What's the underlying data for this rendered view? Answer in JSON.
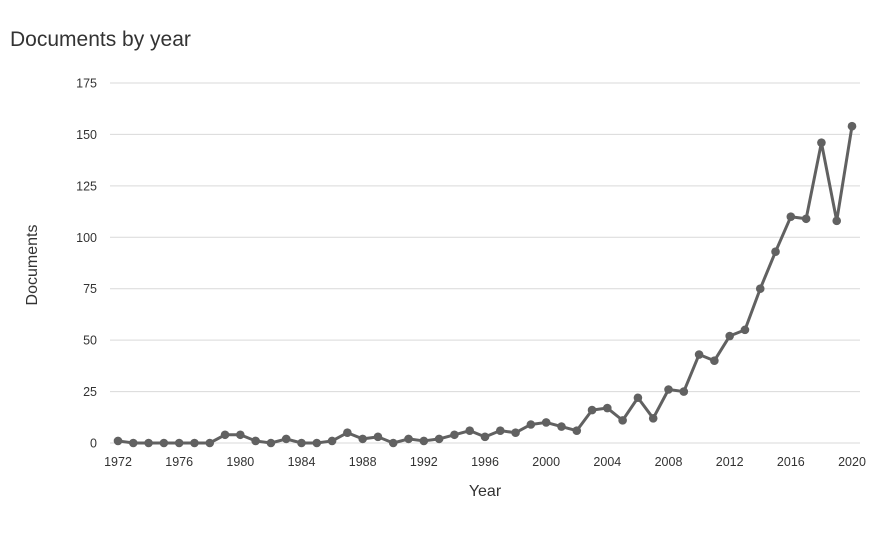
{
  "chart_data": {
    "type": "line",
    "title": "Documents by year",
    "xlabel": "Year",
    "ylabel": "Documents",
    "x": [
      1972,
      1973,
      1974,
      1975,
      1976,
      1977,
      1978,
      1979,
      1980,
      1981,
      1982,
      1983,
      1984,
      1985,
      1986,
      1987,
      1988,
      1989,
      1990,
      1991,
      1992,
      1993,
      1994,
      1995,
      1996,
      1997,
      1998,
      1999,
      2000,
      2001,
      2002,
      2003,
      2004,
      2005,
      2006,
      2007,
      2008,
      2009,
      2010,
      2011,
      2012,
      2013,
      2014,
      2015,
      2016,
      2017,
      2018,
      2019,
      2020
    ],
    "series": [
      {
        "values": [
          1,
          0,
          0,
          0,
          0,
          0,
          0,
          4,
          4,
          1,
          0,
          2,
          0,
          0,
          1,
          5,
          2,
          3,
          0,
          2,
          1,
          2,
          4,
          6,
          3,
          6,
          5,
          9,
          10,
          8,
          6,
          16,
          17,
          11,
          22,
          12,
          26,
          25,
          43,
          40,
          52,
          55,
          75,
          93,
          110,
          109,
          146,
          108,
          154
        ]
      }
    ],
    "xticks": [
      1972,
      1976,
      1980,
      1984,
      1988,
      1992,
      1996,
      2000,
      2004,
      2008,
      2012,
      2016,
      2020
    ],
    "yticks": [
      0,
      25,
      50,
      75,
      100,
      125,
      150,
      175
    ],
    "ylim": [
      0,
      175
    ],
    "grid": "horizontal",
    "line_color": "#616161",
    "grid_color": "#d9d9d9"
  }
}
